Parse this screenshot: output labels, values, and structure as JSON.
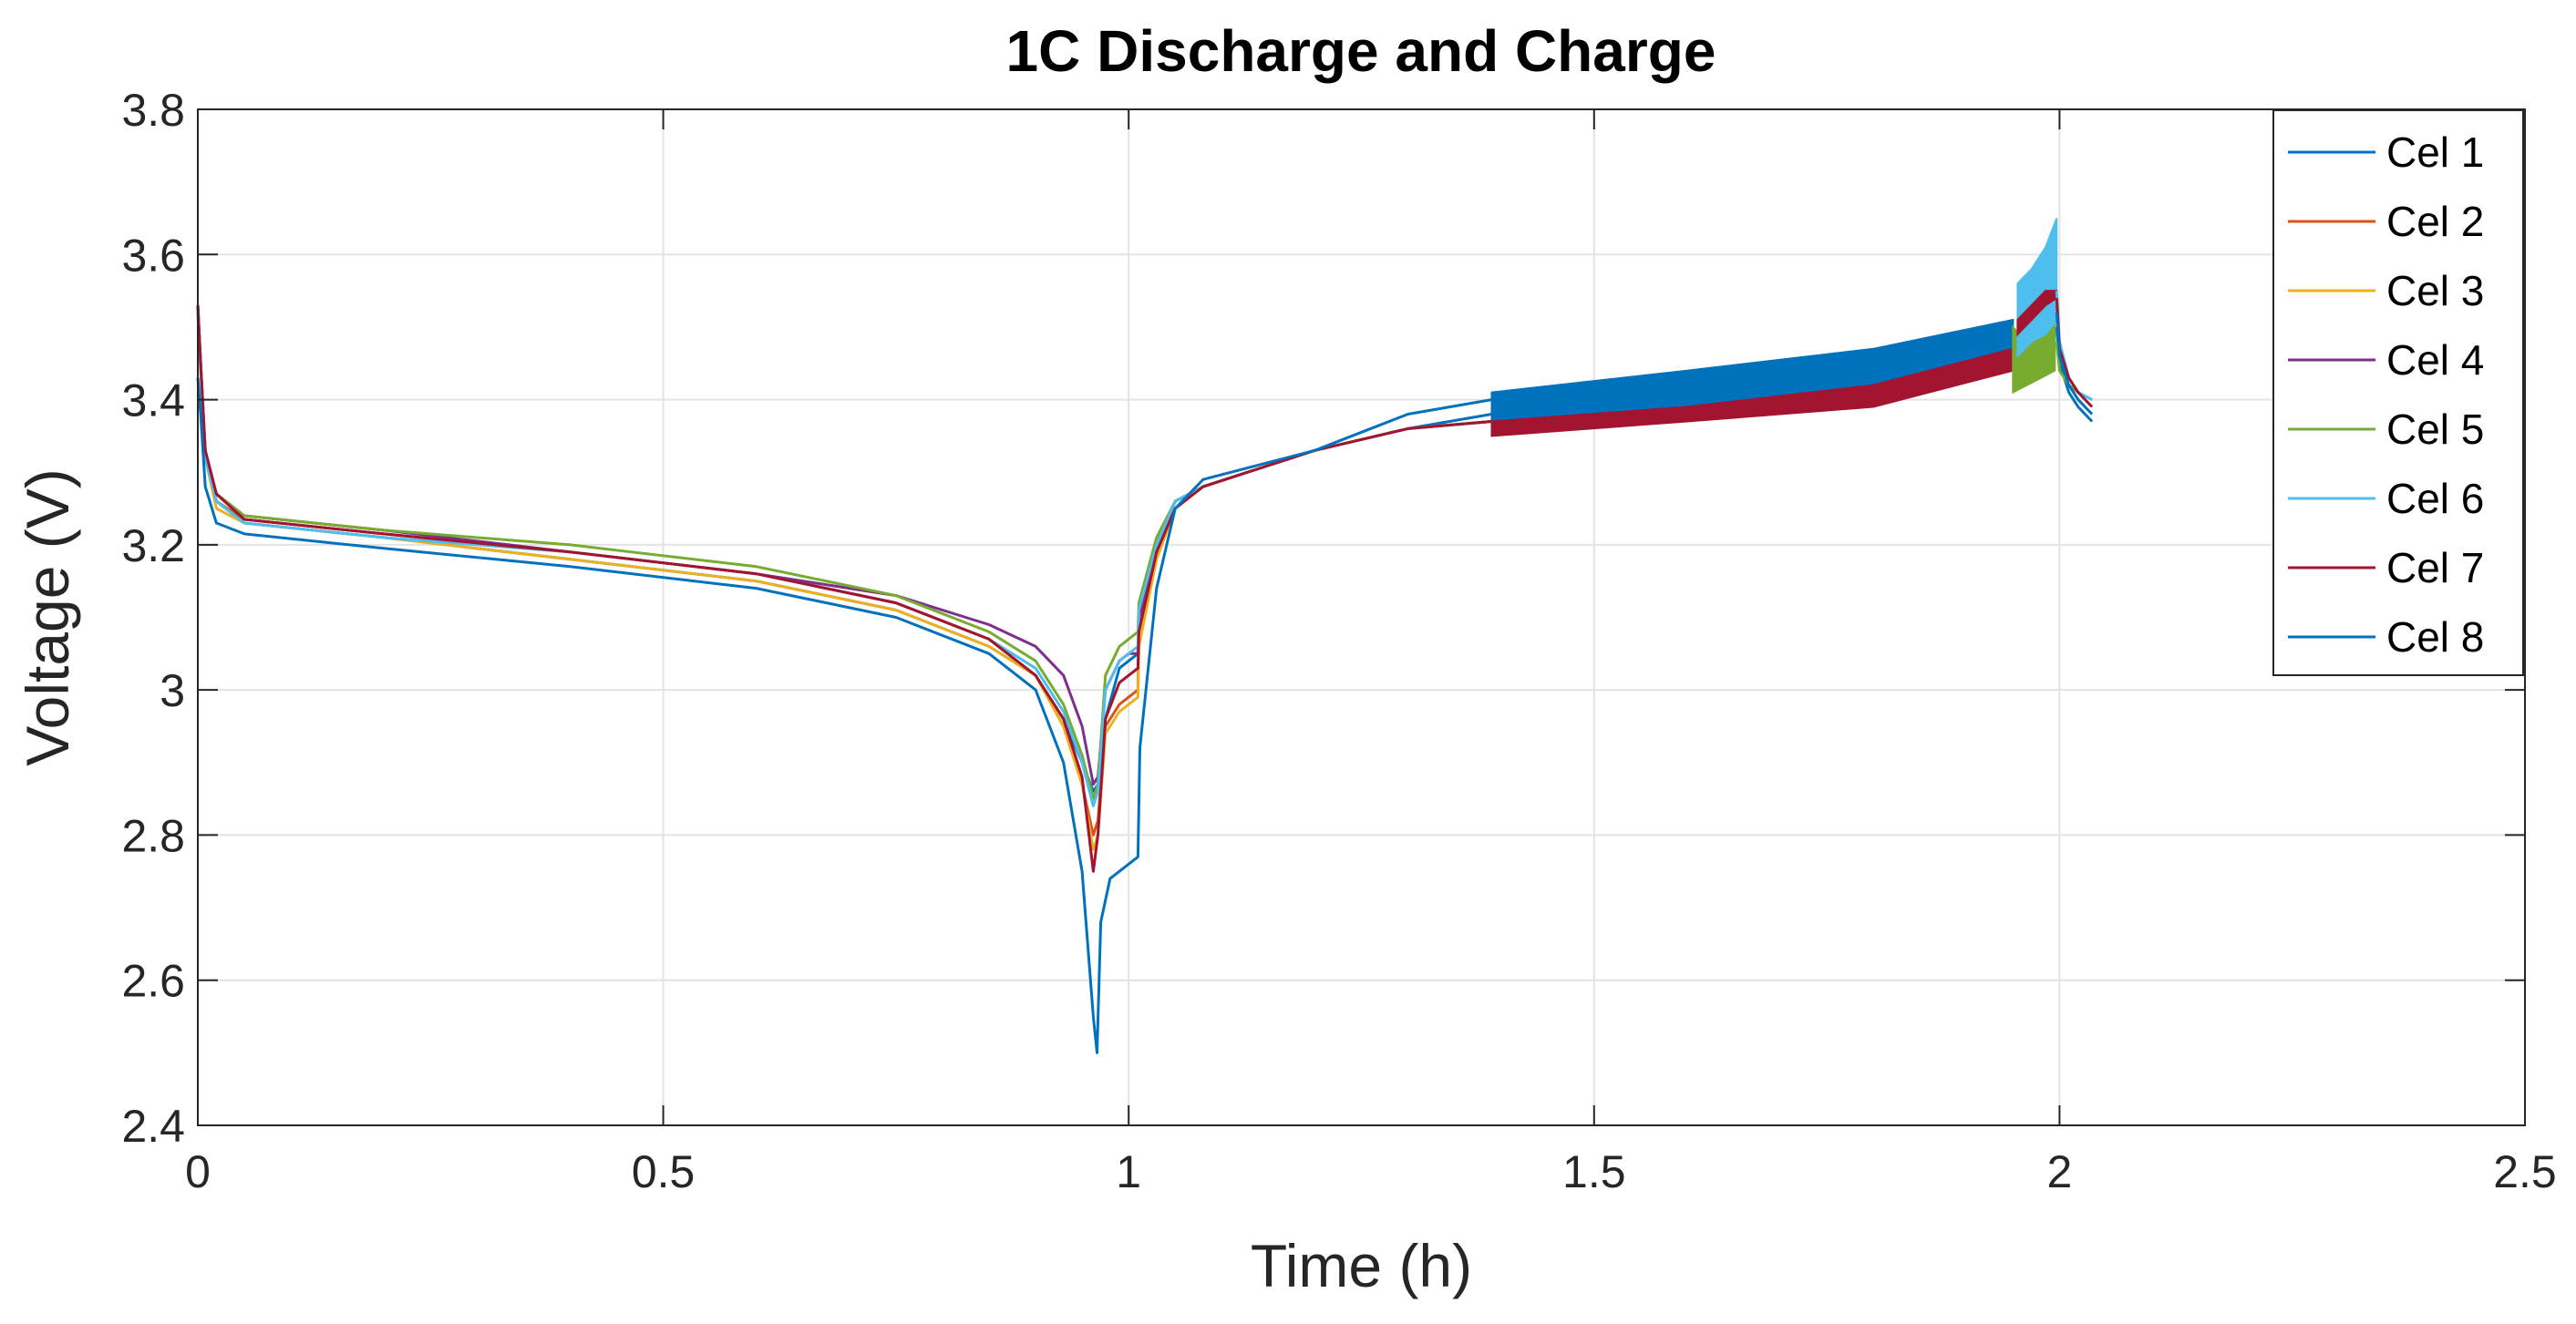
{
  "chart_data": {
    "type": "line",
    "title": "1C Discharge and Charge",
    "xlabel": "Time (h)",
    "ylabel": "Voltage (V)",
    "xlim": [
      0,
      2.5
    ],
    "ylim": [
      2.4,
      3.8
    ],
    "xticks": [
      0,
      0.5,
      1,
      1.5,
      2,
      2.5
    ],
    "xtick_labels": [
      "0",
      "0.5",
      "1",
      "1.5",
      "2",
      "2.5"
    ],
    "yticks": [
      2.4,
      2.6,
      2.8,
      3.0,
      3.2,
      3.4,
      3.6,
      3.8
    ],
    "ytick_labels": [
      "2.4",
      "2.6",
      "2.8",
      "3",
      "3.2",
      "3.4",
      "3.6",
      "3.8"
    ],
    "grid": true,
    "legend_position": "top-right",
    "series": [
      {
        "name": "Cel 1",
        "color": "#0072BD",
        "x": [
          0,
          0.003,
          0.008,
          0.02,
          0.05,
          0.2,
          0.4,
          0.6,
          0.75,
          0.85,
          0.9,
          0.93,
          0.95,
          0.962,
          0.967,
          0.975,
          0.99,
          1.0,
          1.01,
          1.011,
          1.03,
          1.05,
          1.08,
          1.2,
          1.3,
          1.39
        ],
        "y": [
          3.53,
          3.45,
          3.32,
          3.26,
          3.23,
          3.21,
          3.18,
          3.15,
          3.11,
          3.06,
          3.02,
          2.96,
          2.9,
          2.86,
          2.87,
          2.96,
          3.03,
          3.04,
          3.05,
          3.1,
          3.2,
          3.26,
          3.28,
          3.33,
          3.36,
          3.38
        ]
      },
      {
        "name": "Cel 2",
        "color": "#D95319",
        "x": [
          0,
          0.003,
          0.008,
          0.02,
          0.05,
          0.2,
          0.4,
          0.6,
          0.75,
          0.85,
          0.9,
          0.93,
          0.95,
          0.962,
          0.967,
          0.975,
          0.99,
          1.0,
          1.01,
          1.011,
          1.03,
          1.05,
          1.08,
          1.2,
          1.3,
          1.39
        ],
        "y": [
          3.53,
          3.45,
          3.33,
          3.26,
          3.235,
          3.215,
          3.19,
          3.16,
          3.12,
          3.07,
          3.02,
          2.95,
          2.87,
          2.8,
          2.82,
          2.95,
          2.98,
          2.99,
          3.0,
          3.08,
          3.2,
          3.26,
          3.28,
          3.33,
          3.36,
          3.37
        ]
      },
      {
        "name": "Cel 3",
        "color": "#EDB120",
        "x": [
          0,
          0.003,
          0.008,
          0.02,
          0.05,
          0.2,
          0.4,
          0.6,
          0.75,
          0.85,
          0.9,
          0.93,
          0.95,
          0.962,
          0.967,
          0.975,
          0.99,
          1.0,
          1.01,
          1.011,
          1.03,
          1.05,
          1.08,
          1.2,
          1.3,
          1.39
        ],
        "y": [
          3.52,
          3.44,
          3.32,
          3.25,
          3.23,
          3.21,
          3.18,
          3.15,
          3.11,
          3.06,
          3.02,
          2.95,
          2.87,
          2.78,
          2.8,
          2.94,
          2.97,
          2.98,
          2.99,
          3.06,
          3.18,
          3.25,
          3.28,
          3.33,
          3.36,
          3.37
        ]
      },
      {
        "name": "Cel 4",
        "color": "#7E2F8E",
        "x": [
          0,
          0.003,
          0.008,
          0.02,
          0.05,
          0.2,
          0.4,
          0.6,
          0.75,
          0.85,
          0.9,
          0.93,
          0.95,
          0.962,
          0.967,
          0.975,
          0.99,
          1.0,
          1.01,
          1.011,
          1.03,
          1.05,
          1.08,
          1.2,
          1.3,
          1.39
        ],
        "y": [
          3.53,
          3.45,
          3.33,
          3.27,
          3.24,
          3.22,
          3.19,
          3.16,
          3.13,
          3.09,
          3.06,
          3.02,
          2.95,
          2.87,
          2.88,
          3.0,
          3.04,
          3.05,
          3.05,
          3.1,
          3.2,
          3.26,
          3.28,
          3.33,
          3.36,
          3.37
        ]
      },
      {
        "name": "Cel 5",
        "color": "#77AC30",
        "x": [
          0,
          0.003,
          0.008,
          0.02,
          0.05,
          0.2,
          0.4,
          0.6,
          0.75,
          0.85,
          0.9,
          0.93,
          0.95,
          0.962,
          0.967,
          0.975,
          0.99,
          1.0,
          1.01,
          1.011,
          1.03,
          1.05,
          1.08,
          1.2,
          1.3,
          1.39
        ],
        "y": [
          3.52,
          3.45,
          3.33,
          3.27,
          3.24,
          3.22,
          3.2,
          3.17,
          3.13,
          3.08,
          3.04,
          2.98,
          2.91,
          2.85,
          2.87,
          3.02,
          3.06,
          3.07,
          3.08,
          3.12,
          3.21,
          3.26,
          3.28,
          3.33,
          3.36,
          3.37
        ]
      },
      {
        "name": "Cel 6",
        "color": "#4DBEEE",
        "x": [
          0,
          0.003,
          0.008,
          0.02,
          0.05,
          0.2,
          0.4,
          0.6,
          0.75,
          0.85,
          0.9,
          0.93,
          0.95,
          0.962,
          0.967,
          0.975,
          0.99,
          1.0,
          1.01,
          1.011,
          1.03,
          1.05,
          1.08,
          1.2,
          1.3,
          1.39
        ],
        "y": [
          3.52,
          3.44,
          3.32,
          3.26,
          3.23,
          3.21,
          3.19,
          3.16,
          3.12,
          3.07,
          3.03,
          2.97,
          2.9,
          2.84,
          2.86,
          3.0,
          3.04,
          3.05,
          3.06,
          3.11,
          3.2,
          3.26,
          3.28,
          3.33,
          3.36,
          3.37
        ]
      },
      {
        "name": "Cel 7",
        "color": "#A2142F",
        "x": [
          0,
          0.003,
          0.008,
          0.02,
          0.05,
          0.2,
          0.4,
          0.6,
          0.75,
          0.85,
          0.9,
          0.93,
          0.95,
          0.962,
          0.967,
          0.975,
          0.99,
          1.0,
          1.01,
          1.011,
          1.03,
          1.05,
          1.08,
          1.2,
          1.3,
          1.39
        ],
        "y": [
          3.53,
          3.45,
          3.33,
          3.27,
          3.235,
          3.215,
          3.19,
          3.16,
          3.12,
          3.07,
          3.02,
          2.96,
          2.88,
          2.75,
          2.8,
          2.96,
          3.01,
          3.02,
          3.03,
          3.08,
          3.19,
          3.25,
          3.28,
          3.33,
          3.36,
          3.37
        ]
      },
      {
        "name": "Cel 8",
        "color": "#0072BD",
        "x": [
          0,
          0.003,
          0.008,
          0.02,
          0.05,
          0.2,
          0.4,
          0.6,
          0.75,
          0.85,
          0.9,
          0.93,
          0.95,
          0.962,
          0.966,
          0.97,
          0.98,
          1.0,
          1.01,
          1.012,
          1.03,
          1.05,
          1.08,
          1.2,
          1.3,
          1.39
        ],
        "y": [
          3.43,
          3.38,
          3.28,
          3.23,
          3.215,
          3.195,
          3.17,
          3.14,
          3.1,
          3.05,
          3.0,
          2.9,
          2.75,
          2.55,
          2.5,
          2.68,
          2.74,
          2.76,
          2.77,
          2.92,
          3.14,
          3.25,
          3.29,
          3.33,
          3.38,
          3.4
        ]
      }
    ],
    "band_segments": [
      {
        "series": "Cel 8",
        "color": "#0072BD",
        "x": [
          1.39,
          1.6,
          1.8,
          1.95
        ],
        "upper": [
          3.41,
          3.44,
          3.47,
          3.51
        ],
        "lower": [
          3.37,
          3.39,
          3.41,
          3.44
        ]
      },
      {
        "series": "Cel 7",
        "color": "#A2142F",
        "x": [
          1.39,
          1.6,
          1.8,
          1.95
        ],
        "upper": [
          3.37,
          3.39,
          3.42,
          3.47
        ],
        "lower": [
          3.35,
          3.37,
          3.39,
          3.44
        ]
      },
      {
        "series": "Cel 5",
        "color": "#77AC30",
        "x": [
          1.95,
          1.965,
          1.98,
          1.995
        ],
        "upper": [
          3.5,
          3.48,
          3.5,
          3.51
        ],
        "lower": [
          3.41,
          3.42,
          3.43,
          3.44
        ]
      },
      {
        "series": "Cel 6",
        "color": "#4DBEEE",
        "x": [
          1.955,
          1.97,
          1.985,
          1.997
        ],
        "upper": [
          3.56,
          3.58,
          3.61,
          3.65
        ],
        "lower": [
          3.46,
          3.48,
          3.49,
          3.51
        ]
      },
      {
        "series": "Cel 7",
        "color": "#A2142F",
        "x": [
          1.955,
          1.97,
          1.985,
          1.997
        ],
        "upper": [
          3.51,
          3.53,
          3.55,
          3.55
        ],
        "lower": [
          3.49,
          3.51,
          3.53,
          3.54
        ]
      }
    ],
    "tails": [
      {
        "series": "Cel 1",
        "color": "#0072BD",
        "x": [
          1.997,
          2.0,
          2.01,
          2.02,
          2.035
        ],
        "y": [
          3.5,
          3.45,
          3.41,
          3.39,
          3.37
        ]
      },
      {
        "series": "Cel 5",
        "color": "#77AC30",
        "x": [
          1.997,
          2.0,
          2.01,
          2.02,
          2.035
        ],
        "y": [
          3.48,
          3.44,
          3.42,
          3.41,
          3.4
        ]
      },
      {
        "series": "Cel 6",
        "color": "#4DBEEE",
        "x": [
          1.997,
          2.0,
          2.01,
          2.02,
          2.035
        ],
        "y": [
          3.55,
          3.48,
          3.43,
          3.41,
          3.4
        ]
      },
      {
        "series": "Cel 7",
        "color": "#A2142F",
        "x": [
          1.997,
          2.0,
          2.01,
          2.02,
          2.035
        ],
        "y": [
          3.54,
          3.47,
          3.43,
          3.41,
          3.39
        ]
      },
      {
        "series": "Cel 8",
        "color": "#0072BD",
        "x": [
          1.997,
          2.0,
          2.01,
          2.02,
          2.035
        ],
        "y": [
          3.52,
          3.46,
          3.42,
          3.4,
          3.38
        ]
      }
    ]
  }
}
